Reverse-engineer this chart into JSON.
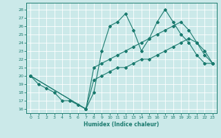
{
  "title": "",
  "xlabel": "Humidex (Indice chaleur)",
  "xlim": [
    -0.5,
    23.5
  ],
  "ylim": [
    15.5,
    28.8
  ],
  "yticks": [
    16,
    17,
    18,
    19,
    20,
    21,
    22,
    23,
    24,
    25,
    26,
    27,
    28
  ],
  "xticks": [
    0,
    1,
    2,
    3,
    4,
    5,
    6,
    7,
    8,
    9,
    10,
    11,
    12,
    13,
    14,
    15,
    16,
    17,
    18,
    19,
    20,
    21,
    22,
    23
  ],
  "bg_color": "#cbe9e9",
  "grid_color": "#ffffff",
  "line_color": "#1a7a6e",
  "line1_x": [
    0,
    1,
    2,
    3,
    4,
    5,
    6,
    7,
    8,
    9,
    10,
    11,
    12,
    13,
    14,
    15,
    16,
    17,
    18,
    19,
    20,
    21,
    22,
    23
  ],
  "line1_y": [
    20.0,
    19.0,
    18.5,
    18.0,
    17.0,
    17.0,
    16.5,
    16.0,
    18.0,
    23.0,
    26.0,
    26.5,
    27.5,
    25.5,
    23.0,
    24.5,
    26.5,
    28.0,
    26.5,
    25.0,
    24.0,
    22.5,
    21.5,
    21.5
  ],
  "line2_x": [
    0,
    7,
    8,
    9,
    10,
    11,
    12,
    13,
    14,
    15,
    16,
    17,
    18,
    19,
    20,
    21,
    22,
    23
  ],
  "line2_y": [
    20.0,
    16.0,
    21.0,
    21.5,
    22.0,
    22.5,
    23.0,
    23.5,
    24.0,
    24.5,
    25.0,
    25.5,
    26.0,
    26.5,
    25.5,
    24.0,
    22.5,
    21.5
  ],
  "line3_x": [
    0,
    7,
    8,
    9,
    10,
    11,
    12,
    13,
    14,
    15,
    16,
    17,
    18,
    19,
    20,
    21,
    22,
    23
  ],
  "line3_y": [
    20.0,
    16.0,
    19.5,
    20.0,
    20.5,
    21.0,
    21.0,
    21.5,
    22.0,
    22.0,
    22.5,
    23.0,
    23.5,
    24.0,
    24.5,
    24.0,
    23.0,
    21.5
  ]
}
